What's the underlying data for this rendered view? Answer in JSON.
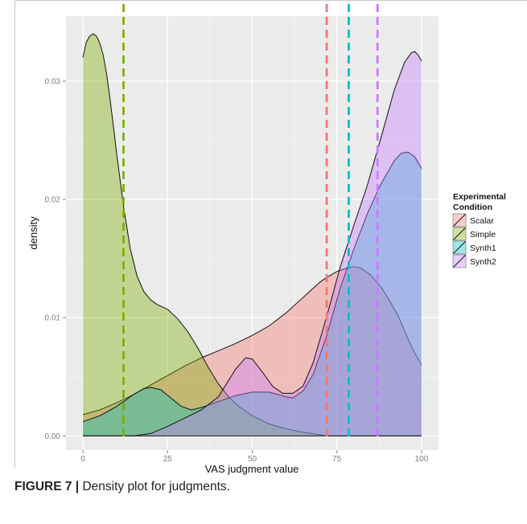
{
  "figure": {
    "caption_label": "FIGURE 7 |",
    "caption_text": " Density plot for judgments."
  },
  "chart_data": {
    "type": "area",
    "title": "",
    "xlabel": "VAS judgment value",
    "ylabel": "density",
    "xlim": [
      -5,
      105
    ],
    "ylim": [
      -0.0012,
      0.0355
    ],
    "x_ticks": [
      0,
      25,
      50,
      75,
      100
    ],
    "x_tick_labels": [
      "0",
      "25",
      "50",
      "75",
      "100"
    ],
    "y_ticks": [
      0.0,
      0.01,
      0.02,
      0.03
    ],
    "y_tick_labels": [
      "0.00",
      "0.01",
      "0.02",
      "0.03"
    ],
    "grid": true,
    "legend_position": "right",
    "legend_title": "Experimental Condition",
    "series": [
      {
        "name": "Scalar",
        "color": "#F8766D",
        "mean_line": 72,
        "points": [
          [
            0,
            0.0018
          ],
          [
            5,
            0.0022
          ],
          [
            10,
            0.0028
          ],
          [
            15,
            0.0035
          ],
          [
            20,
            0.0043
          ],
          [
            25,
            0.0051
          ],
          [
            30,
            0.0059
          ],
          [
            35,
            0.0066
          ],
          [
            40,
            0.0072
          ],
          [
            45,
            0.0078
          ],
          [
            50,
            0.0085
          ],
          [
            55,
            0.0093
          ],
          [
            60,
            0.0104
          ],
          [
            65,
            0.0117
          ],
          [
            70,
            0.013
          ],
          [
            72,
            0.0134
          ],
          [
            75,
            0.0139
          ],
          [
            78,
            0.0142
          ],
          [
            80,
            0.0143
          ],
          [
            82,
            0.0142
          ],
          [
            85,
            0.0136
          ],
          [
            88,
            0.0126
          ],
          [
            90,
            0.0117
          ],
          [
            93,
            0.0102
          ],
          [
            96,
            0.0082
          ],
          [
            98,
            0.007
          ],
          [
            100,
            0.006
          ]
        ]
      },
      {
        "name": "Simple",
        "color": "#7CAE00",
        "mean_line": 12,
        "points": [
          [
            0,
            0.032
          ],
          [
            1,
            0.0333
          ],
          [
            2,
            0.0338
          ],
          [
            3,
            0.034
          ],
          [
            4,
            0.0338
          ],
          [
            5,
            0.0332
          ],
          [
            6,
            0.0322
          ],
          [
            7,
            0.0306
          ],
          [
            8,
            0.0285
          ],
          [
            9,
            0.0262
          ],
          [
            10,
            0.0238
          ],
          [
            12,
            0.0194
          ],
          [
            14,
            0.0158
          ],
          [
            16,
            0.0135
          ],
          [
            18,
            0.0122
          ],
          [
            20,
            0.0115
          ],
          [
            22,
            0.0111
          ],
          [
            25,
            0.0107
          ],
          [
            28,
            0.0099
          ],
          [
            31,
            0.0088
          ],
          [
            34,
            0.0074
          ],
          [
            37,
            0.0058
          ],
          [
            40,
            0.0044
          ],
          [
            43,
            0.0033
          ],
          [
            46,
            0.0025
          ],
          [
            50,
            0.0017
          ],
          [
            55,
            0.001
          ],
          [
            60,
            0.0006
          ],
          [
            65,
            0.0003
          ],
          [
            70,
            0.0001
          ],
          [
            72,
            0.0
          ],
          [
            100,
            0.0
          ]
        ]
      },
      {
        "name": "Synth1",
        "color": "#00BFC4",
        "mean_line": 78.5,
        "points": [
          [
            0,
            0.0012
          ],
          [
            5,
            0.0017
          ],
          [
            10,
            0.0025
          ],
          [
            15,
            0.0035
          ],
          [
            18,
            0.004
          ],
          [
            20,
            0.0041
          ],
          [
            23,
            0.0039
          ],
          [
            26,
            0.0032
          ],
          [
            29,
            0.0025
          ],
          [
            32,
            0.0022
          ],
          [
            35,
            0.0024
          ],
          [
            40,
            0.0029
          ],
          [
            45,
            0.0034
          ],
          [
            50,
            0.0037
          ],
          [
            55,
            0.0037
          ],
          [
            60,
            0.0033
          ],
          [
            62,
            0.0032
          ],
          [
            65,
            0.0038
          ],
          [
            68,
            0.0052
          ],
          [
            72,
            0.0085
          ],
          [
            76,
            0.0125
          ],
          [
            80,
            0.0158
          ],
          [
            84,
            0.0188
          ],
          [
            88,
            0.0213
          ],
          [
            92,
            0.0233
          ],
          [
            94,
            0.0239
          ],
          [
            96,
            0.024
          ],
          [
            98,
            0.0236
          ],
          [
            100,
            0.0226
          ]
        ]
      },
      {
        "name": "Synth2",
        "color": "#C77CFF",
        "mean_line": 87,
        "points": [
          [
            0,
            0.0
          ],
          [
            15,
            0.0
          ],
          [
            20,
            0.0002
          ],
          [
            25,
            0.0008
          ],
          [
            30,
            0.0015
          ],
          [
            35,
            0.0022
          ],
          [
            40,
            0.0033
          ],
          [
            45,
            0.0056
          ],
          [
            48,
            0.0066
          ],
          [
            50,
            0.0065
          ],
          [
            53,
            0.0054
          ],
          [
            56,
            0.0042
          ],
          [
            59,
            0.0036
          ],
          [
            62,
            0.0036
          ],
          [
            65,
            0.0042
          ],
          [
            68,
            0.0062
          ],
          [
            72,
            0.0101
          ],
          [
            76,
            0.0143
          ],
          [
            80,
            0.0178
          ],
          [
            84,
            0.0212
          ],
          [
            88,
            0.0252
          ],
          [
            92,
            0.0293
          ],
          [
            95,
            0.0316
          ],
          [
            97,
            0.0324
          ],
          [
            98,
            0.0325
          ],
          [
            99,
            0.0322
          ],
          [
            100,
            0.0317
          ]
        ]
      }
    ]
  }
}
